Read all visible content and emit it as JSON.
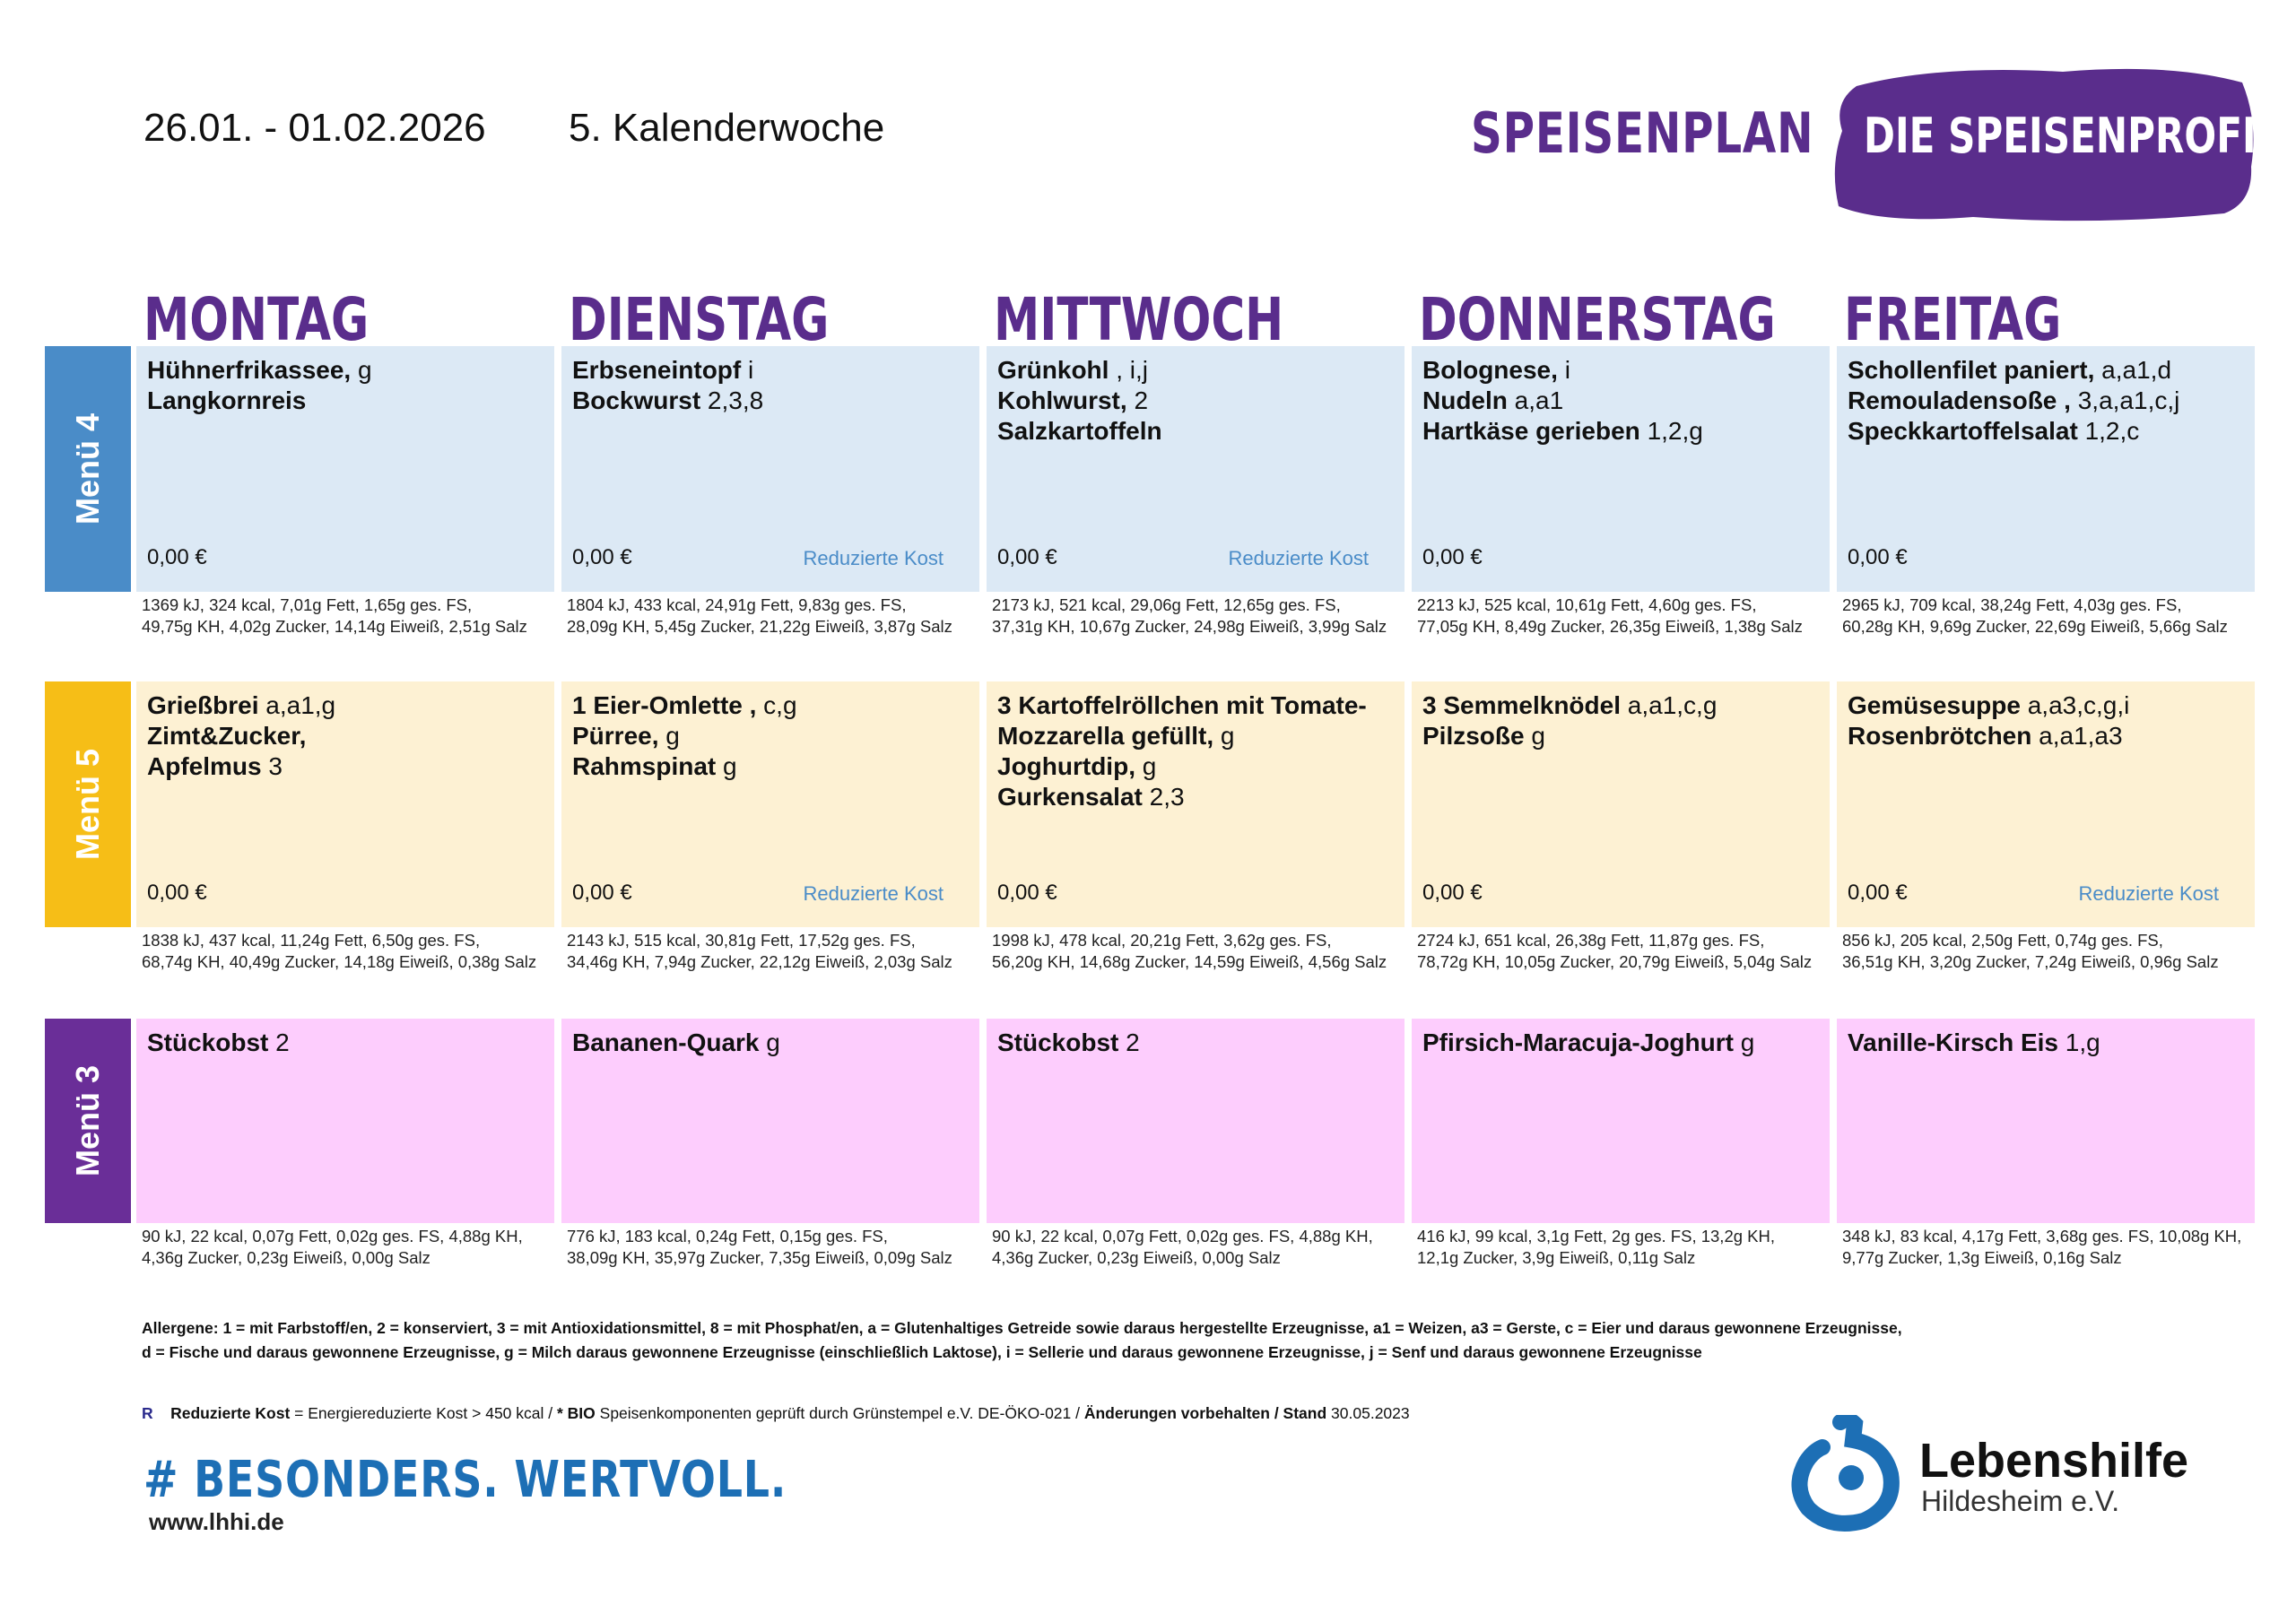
{
  "header": {
    "date_range": "26.01. - 01.02.2026",
    "week": "5. Kalenderwoche",
    "title": "SPEISENPLAN",
    "badge": "DIE SPEISENPROFIS"
  },
  "colors": {
    "purple": "#5a2d8c",
    "menu4_tab": "#4a8cc8",
    "menu4_bg": "#dce9f5",
    "menu5_tab": "#f6be17",
    "menu5_bg": "#fdf1d3",
    "menu3_tab": "#6a2e98",
    "menu3_bg": "#fdcdfd"
  },
  "days": [
    "MONTAG",
    "DIENSTAG",
    "MITTWOCH",
    "DONNERSTAG",
    "FREITAG"
  ],
  "menus": [
    {
      "label": "Menü 4",
      "cells": [
        {
          "lines": [
            {
              "b": "Hühnerfrikassee,",
              "t": " g"
            },
            {
              "b": "Langkornreis",
              "t": ""
            }
          ],
          "price": "0,00 €",
          "reduced": "",
          "nut1": "1369 kJ, 324 kcal, 7,01g Fett, 1,65g ges. FS,",
          "nut2": "49,75g KH, 4,02g Zucker, 14,14g Eiweiß, 2,51g Salz"
        },
        {
          "lines": [
            {
              "b": "Erbseneintopf",
              "t": " i"
            },
            {
              "b": "Bockwurst",
              "t": " 2,3,8"
            }
          ],
          "price": "0,00 €",
          "reduced": "Reduzierte Kost",
          "nut1": "1804 kJ, 433 kcal, 24,91g Fett, 9,83g ges. FS,",
          "nut2": "28,09g KH, 5,45g Zucker, 21,22g Eiweiß, 3,87g Salz"
        },
        {
          "lines": [
            {
              "b": "Grünkohl",
              "t": " , i,j"
            },
            {
              "b": "Kohlwurst,",
              "t": " 2"
            },
            {
              "b": "Salzkartoffeln",
              "t": ""
            }
          ],
          "price": "0,00 €",
          "reduced": "Reduzierte Kost",
          "nut1": "2173 kJ, 521 kcal, 29,06g Fett, 12,65g ges. FS,",
          "nut2": "37,31g KH, 10,67g Zucker, 24,98g Eiweiß, 3,99g Salz"
        },
        {
          "lines": [
            {
              "b": "Bolognese,",
              "t": " i"
            },
            {
              "b": " Nudeln",
              "t": " a,a1"
            },
            {
              "b": "Hartkäse gerieben",
              "t": " 1,2,g"
            }
          ],
          "price": "0,00 €",
          "reduced": "",
          "nut1": "2213 kJ, 525 kcal, 10,61g Fett, 4,60g ges. FS,",
          "nut2": "77,05g KH, 8,49g Zucker, 26,35g Eiweiß, 1,38g Salz"
        },
        {
          "lines": [
            {
              "b": "Schollenfilet paniert,",
              "t": " a,a1,d"
            },
            {
              "b": "Remouladensoße ,",
              "t": " 3,a,a1,c,j"
            },
            {
              "b": "Speckkartoffelsalat",
              "t": " 1,2,c"
            }
          ],
          "price": "0,00 €",
          "reduced": "",
          "nut1": "2965 kJ, 709 kcal, 38,24g Fett, 4,03g ges. FS,",
          "nut2": "60,28g KH, 9,69g Zucker, 22,69g Eiweiß, 5,66g Salz"
        }
      ]
    },
    {
      "label": "Menü 5",
      "cells": [
        {
          "lines": [
            {
              "b": "Grießbrei",
              "t": "  a,a1,g"
            },
            {
              "b": "Zimt&Zucker,",
              "t": ""
            },
            {
              "b": "Apfelmus",
              "t": " 3"
            }
          ],
          "price": "0,00 €",
          "reduced": "",
          "nut1": "1838 kJ, 437 kcal, 11,24g Fett, 6,50g ges. FS,",
          "nut2": "68,74g KH, 40,49g Zucker, 14,18g Eiweiß, 0,38g Salz"
        },
        {
          "lines": [
            {
              "b": "1 Eier-Omlette ,",
              "t": " c,g"
            },
            {
              "b": "Pürree,",
              "t": " g"
            },
            {
              "b": "Rahmspinat",
              "t": " g"
            }
          ],
          "price": "0,00 €",
          "reduced": "Reduzierte Kost",
          "nut1": "2143 kJ, 515 kcal, 30,81g Fett, 17,52g ges. FS,",
          "nut2": "34,46g KH, 7,94g Zucker, 22,12g Eiweiß, 2,03g Salz"
        },
        {
          "lines": [
            {
              "b": "3 Kartoffelröllchen mit Tomate-",
              "t": ""
            },
            {
              "b": "Mozzarella gefüllt,",
              "t": " g"
            },
            {
              "b": "Joghurtdip,",
              "t": " g"
            },
            {
              "b": "Gurkensalat",
              "t": " 2,3"
            }
          ],
          "price": "0,00 €",
          "reduced": "",
          "nut1": "1998 kJ, 478 kcal, 20,21g Fett, 3,62g ges. FS,",
          "nut2": "56,20g KH, 14,68g Zucker, 14,59g Eiweiß, 4,56g Salz"
        },
        {
          "lines": [
            {
              "b": "3 Semmelknödel",
              "t": "  a,a1,c,g"
            },
            {
              "b": "Pilzsoße",
              "t": " g"
            }
          ],
          "price": "0,00 €",
          "reduced": "",
          "nut1": "2724 kJ, 651 kcal, 26,38g Fett, 11,87g ges. FS,",
          "nut2": "78,72g KH, 10,05g Zucker, 20,79g Eiweiß, 5,04g Salz"
        },
        {
          "lines": [
            {
              "b": "Gemüsesuppe",
              "t": "  a,a3,c,g,i"
            },
            {
              "b": "Rosenbrötchen",
              "t": " a,a1,a3"
            }
          ],
          "price": "0,00 €",
          "reduced": "Reduzierte Kost",
          "nut1": "856 kJ, 205 kcal, 2,50g Fett, 0,74g ges. FS,",
          "nut2": "36,51g KH, 3,20g Zucker, 7,24g Eiweiß, 0,96g Salz"
        }
      ]
    },
    {
      "label": "Menü 3",
      "cells": [
        {
          "lines": [
            {
              "b": "Stückobst",
              "t": " 2"
            }
          ],
          "price": "",
          "reduced": "",
          "nut1": "90 kJ, 22 kcal, 0,07g Fett, 0,02g ges. FS, 4,88g KH,",
          "nut2": "4,36g Zucker, 0,23g Eiweiß, 0,00g Salz"
        },
        {
          "lines": [
            {
              "b": "Bananen-Quark",
              "t": " g"
            }
          ],
          "price": "",
          "reduced": "",
          "nut1": "776 kJ, 183 kcal, 0,24g Fett, 0,15g ges. FS,",
          "nut2": "38,09g KH, 35,97g Zucker, 7,35g Eiweiß, 0,09g Salz"
        },
        {
          "lines": [
            {
              "b": "Stückobst",
              "t": " 2"
            }
          ],
          "price": "",
          "reduced": "",
          "nut1": "90 kJ, 22 kcal, 0,07g Fett, 0,02g ges. FS, 4,88g KH,",
          "nut2": "4,36g Zucker, 0,23g Eiweiß, 0,00g Salz"
        },
        {
          "lines": [
            {
              "b": "Pfirsich-Maracuja-Joghurt",
              "t": " g"
            }
          ],
          "price": "",
          "reduced": "",
          "nut1": "416 kJ, 99 kcal, 3,1g Fett, 2g ges. FS, 13,2g KH,",
          "nut2": "12,1g Zucker, 3,9g Eiweiß, 0,11g Salz"
        },
        {
          "lines": [
            {
              "b": "Vanille-Kirsch Eis",
              "t": " 1,g"
            }
          ],
          "price": "",
          "reduced": "",
          "nut1": "348 kJ, 83 kcal, 4,17g Fett, 3,68g ges. FS, 10,08g KH,",
          "nut2": "9,77g Zucker, 1,3g Eiweiß, 0,16g Salz"
        }
      ]
    }
  ],
  "footer": {
    "allergen_line1": "Allergene: 1 = mit Farbstoff/en, 2 = konserviert, 3 = mit Antioxidationsmittel, 8 = mit Phosphat/en, a = Glutenhaltiges Getreide sowie daraus hergestellte Erzeugnisse, a1 = Weizen, a3 = Gerste, c = Eier und daraus gewonnene Erzeugnisse,",
    "allergen_line2": "d = Fische und daraus gewonnene Erzeugnisse, g = Milch daraus gewonnene Erzeugnisse (einschließlich Laktose), i = Sellerie und daraus gewonnene Erzeugnisse, j = Senf und daraus gewonnene Erzeugnisse",
    "legend_r": "R",
    "legend_reduced": "Reduzierte Kost",
    "legend_reduced_desc": " = Energiereduzierte Kost > 450 kcal / ",
    "legend_bio": "* BIO",
    "legend_bio_desc": " Speisenkomponenten geprüft durch Grünstempel e.V. DE-ÖKO-021 / ",
    "legend_changes": "Änderungen vorbehalten / Stand",
    "legend_date": " 30.05.2023",
    "slogan": "# BESONDERS. WERTVOLL.",
    "url": "www.lhhi.de",
    "org_name": "Lebenshilfe",
    "org_sub": "Hildesheim e.V."
  }
}
